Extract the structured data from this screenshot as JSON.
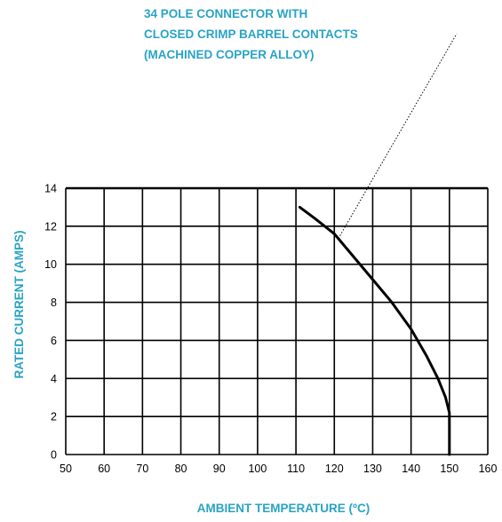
{
  "colors": {
    "accent": "#2aa3c4",
    "ink": "#000000"
  },
  "chart_data": {
    "type": "line",
    "title": "",
    "xlabel": "AMBIENT TEMPERATURE (ºC)",
    "ylabel": "RATED CURRENT (AMPS)",
    "xlim": [
      50,
      160
    ],
    "ylim": [
      0,
      14
    ],
    "x_ticks": [
      "50",
      "60",
      "70",
      "80",
      "90",
      "100",
      "110",
      "120",
      "130",
      "140",
      "150",
      "160"
    ],
    "y_ticks": [
      "0",
      "2",
      "4",
      "6",
      "8",
      "10",
      "12",
      "14"
    ],
    "grid": true,
    "annotation": {
      "lines": [
        "34 POLE CONNECTOR WITH",
        "CLOSED CRIMP BARREL CONTACTS",
        "(MACHINED COPPER ALLOY)"
      ],
      "points_to": {
        "x": 121,
        "y": 11.5
      }
    },
    "series": [
      {
        "x": [
          111,
          115,
          120,
          125,
          130,
          135,
          140,
          144,
          147,
          149,
          150,
          150,
          150
        ],
        "y": [
          13,
          12.4,
          11.6,
          10.4,
          9.2,
          8.0,
          6.6,
          5.2,
          4.0,
          3.0,
          2.2,
          1.0,
          0
        ],
        "color": "#000000"
      }
    ]
  }
}
